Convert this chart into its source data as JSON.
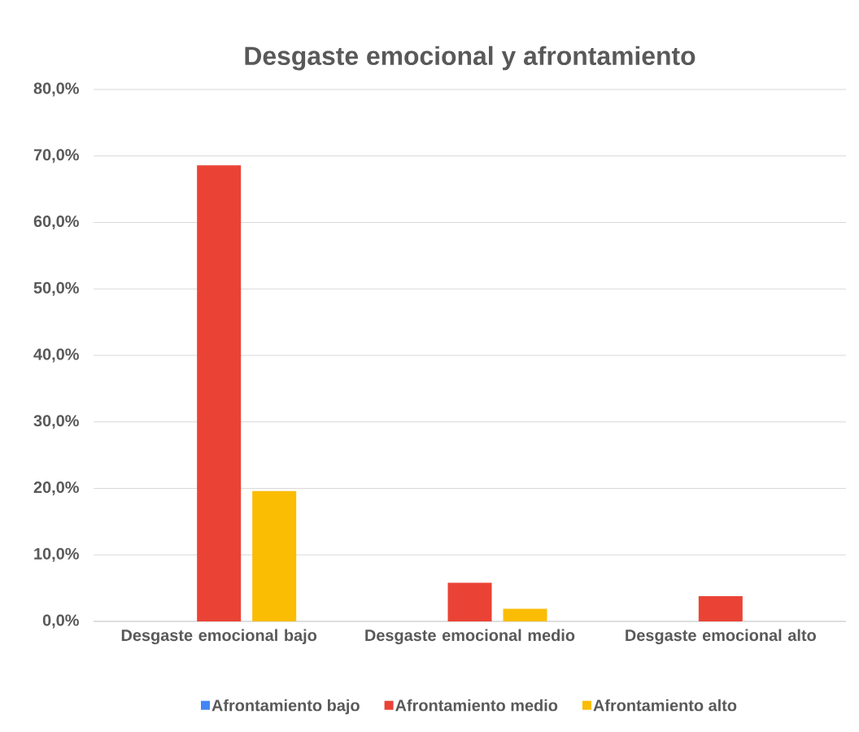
{
  "chart_data": {
    "type": "bar",
    "title": "Desgaste emocional y afrontamiento",
    "categories": [
      "Desgaste emocional bajo",
      "Desgaste emocional medio",
      "Desgaste emocional alto"
    ],
    "series": [
      {
        "name": "Afrontamiento bajo",
        "color": "#4285f4",
        "values": [
          0,
          0,
          0
        ]
      },
      {
        "name": "Afrontamiento medio",
        "color": "#ea4335",
        "values": [
          68.6,
          5.8,
          3.8
        ]
      },
      {
        "name": "Afrontamiento alto",
        "color": "#fbbc04",
        "values": [
          19.6,
          1.9,
          0
        ]
      }
    ],
    "ylim": [
      0,
      80
    ],
    "yticks": [
      {
        "value": 0,
        "label": "0,0%"
      },
      {
        "value": 10,
        "label": "10,0%"
      },
      {
        "value": 20,
        "label": "20,0%"
      },
      {
        "value": 30,
        "label": "30,0%"
      },
      {
        "value": 40,
        "label": "40,0%"
      },
      {
        "value": 50,
        "label": "50,0%"
      },
      {
        "value": 60,
        "label": "60,0%"
      },
      {
        "value": 70,
        "label": "70,0%"
      },
      {
        "value": 80,
        "label": "80,0%"
      }
    ],
    "grid": "y",
    "legend": "bottom"
  }
}
